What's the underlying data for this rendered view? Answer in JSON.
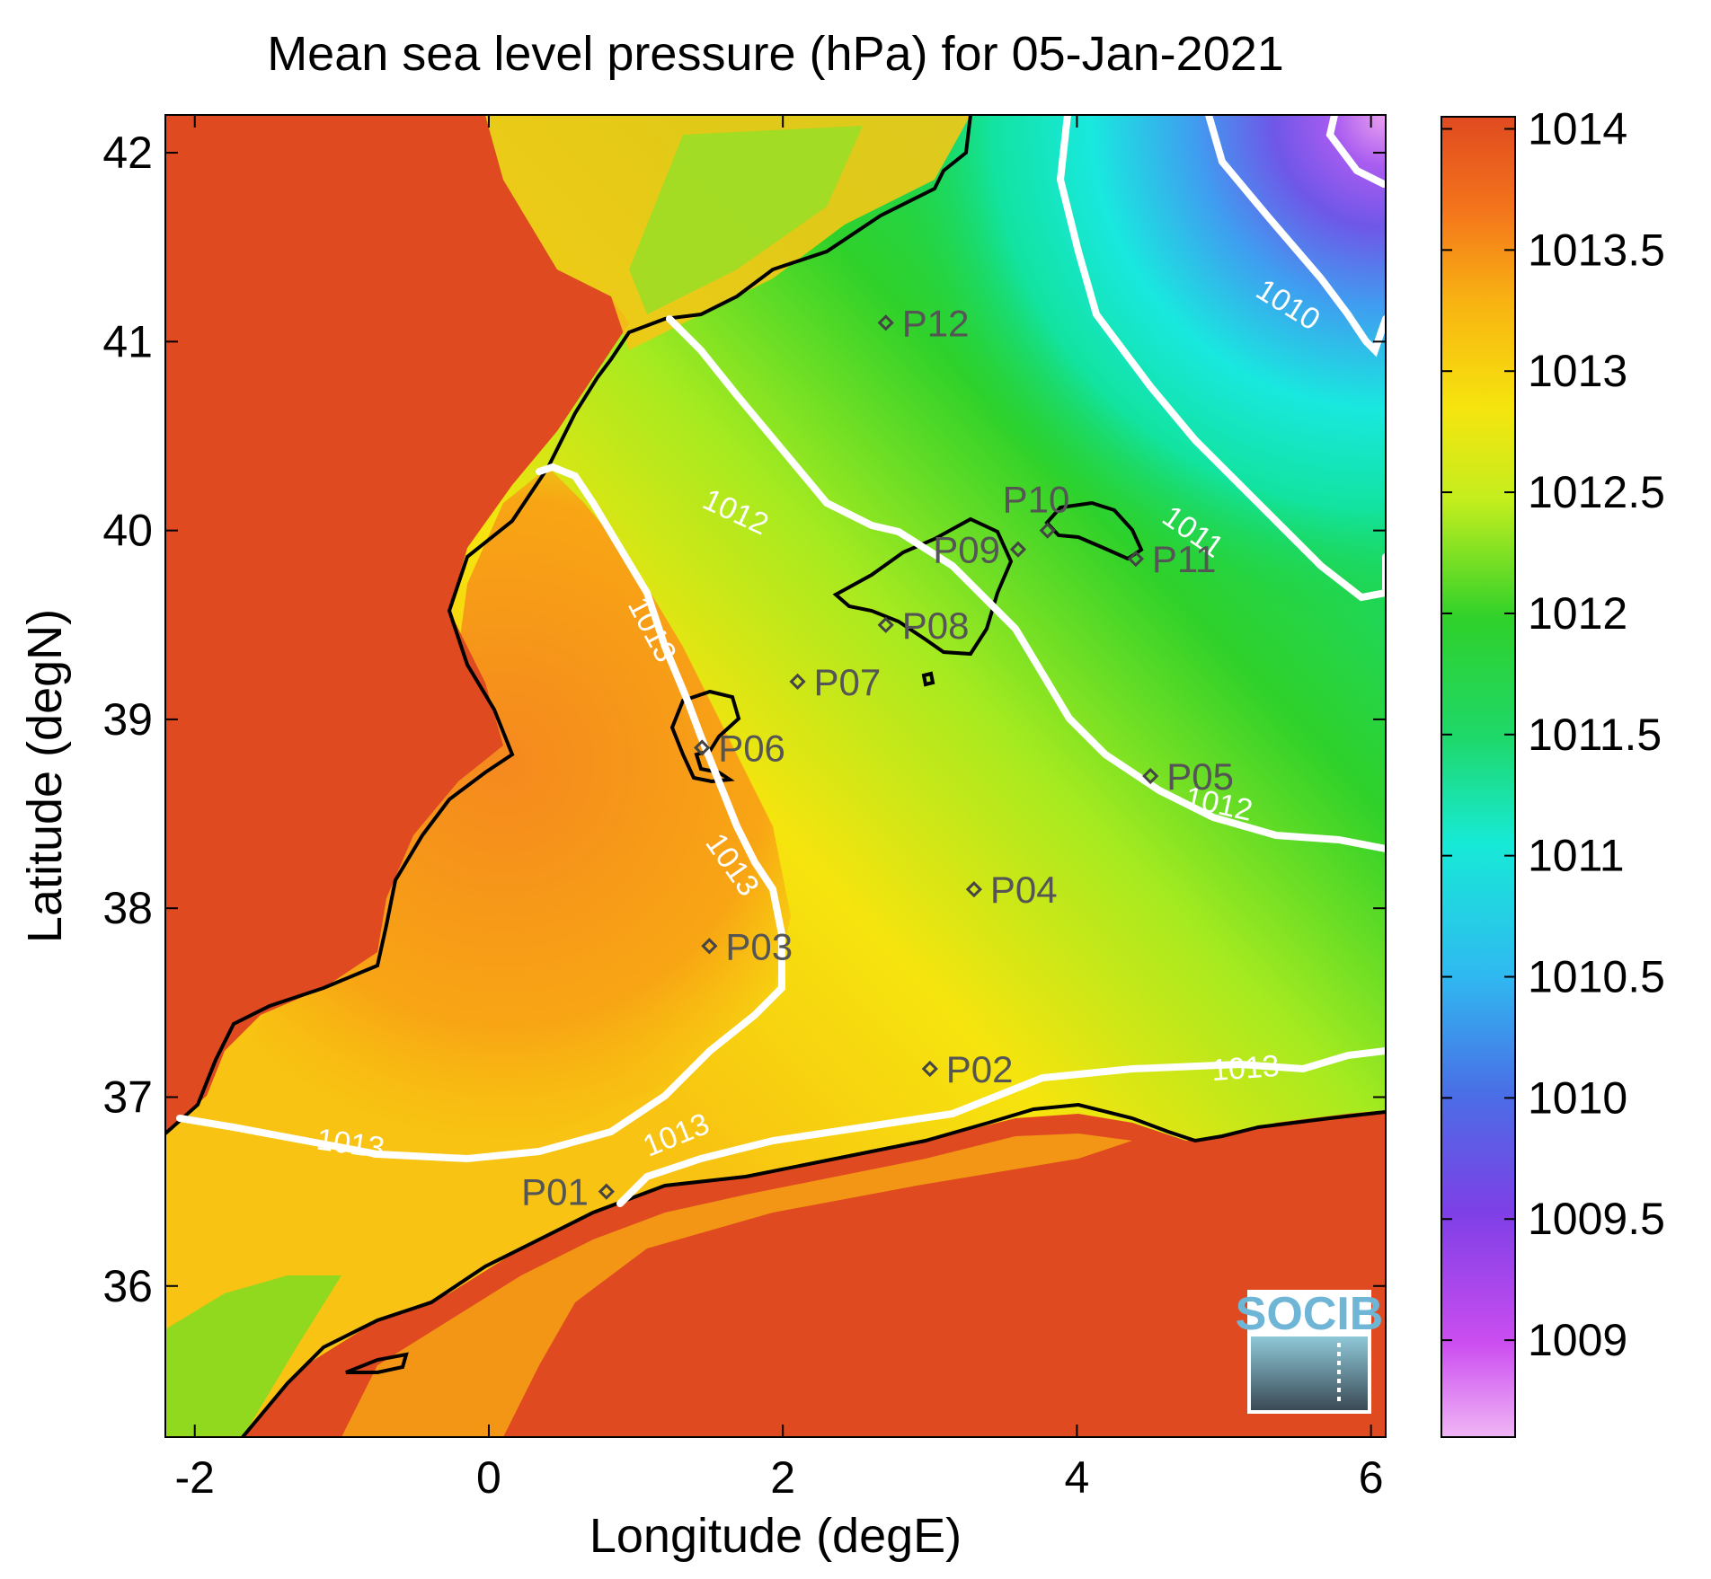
{
  "title": "Mean sea level pressure (hPa) for 05-Jan-2021",
  "xlabel": "Longitude (degE)",
  "ylabel": "Latitude (degN)",
  "logo_text": "SOCIB",
  "colors": {
    "high": "#e04a20",
    "orange": "#f5891e",
    "yellow": "#f6e40e",
    "green": "#22d12e",
    "cyan": "#19e8df",
    "blue": "#4a7ee6",
    "purple": "#7e3fe6",
    "magenta": "#e99ef0",
    "coast": "#000000",
    "contour": "#ffffff"
  },
  "chart_data": {
    "type": "heatmap",
    "xlim": [
      -2.2,
      6.1
    ],
    "ylim": [
      35.2,
      42.2
    ],
    "x_ticks": [
      -2,
      0,
      2,
      4,
      6
    ],
    "x_tick_labels": [
      "-2",
      "0",
      "2",
      "4",
      "6"
    ],
    "y_ticks": [
      36,
      37,
      38,
      39,
      40,
      41,
      42
    ],
    "y_tick_labels": [
      "36",
      "37",
      "38",
      "39",
      "40",
      "41",
      "42"
    ],
    "colorbar": {
      "min": 1008.6,
      "max": 1014.05,
      "ticks": [
        1009,
        1009.5,
        1010,
        1010.5,
        1011,
        1011.5,
        1012,
        1012.5,
        1013,
        1013.5,
        1014
      ],
      "tick_labels": [
        "1009",
        "1009.5",
        "1010",
        "1010.5",
        "1011",
        "1011.5",
        "1012",
        "1012.5",
        "1013",
        "1013.5",
        "1014"
      ]
    },
    "contour_labels": [
      {
        "text": "1013",
        "lon": -0.95,
        "lat": 36.7,
        "angle": 8
      },
      {
        "text": "1013",
        "lon": 1.3,
        "lat": 36.75,
        "angle": -22
      },
      {
        "text": "1013",
        "lon": 5.15,
        "lat": 37.1,
        "angle": -4
      },
      {
        "text": "1013",
        "lon": 1.6,
        "lat": 38.2,
        "angle": 55
      },
      {
        "text": "1013",
        "lon": 1.05,
        "lat": 39.45,
        "angle": 62
      },
      {
        "text": "1012",
        "lon": 1.65,
        "lat": 40.05,
        "angle": 25
      },
      {
        "text": "1012",
        "lon": 4.95,
        "lat": 38.5,
        "angle": 12
      },
      {
        "text": "1011",
        "lon": 4.75,
        "lat": 39.95,
        "angle": 35
      },
      {
        "text": "1010",
        "lon": 5.4,
        "lat": 41.15,
        "angle": 32
      }
    ],
    "stations": [
      {
        "name": "P01",
        "lon": 0.8,
        "lat": 36.5
      },
      {
        "name": "P02",
        "lon": 3.0,
        "lat": 37.15
      },
      {
        "name": "P03",
        "lon": 1.5,
        "lat": 37.8
      },
      {
        "name": "P04",
        "lon": 3.3,
        "lat": 38.1
      },
      {
        "name": "P05",
        "lon": 4.5,
        "lat": 38.7
      },
      {
        "name": "P06",
        "lon": 1.45,
        "lat": 38.85
      },
      {
        "name": "P07",
        "lon": 2.1,
        "lat": 39.2
      },
      {
        "name": "P08",
        "lon": 2.7,
        "lat": 39.5
      },
      {
        "name": "P09",
        "lon": 3.6,
        "lat": 39.9
      },
      {
        "name": "P10",
        "lon": 3.8,
        "lat": 40.0
      },
      {
        "name": "P11",
        "lon": 4.4,
        "lat": 39.85
      },
      {
        "name": "P12",
        "lon": 2.7,
        "lat": 41.1
      }
    ]
  }
}
